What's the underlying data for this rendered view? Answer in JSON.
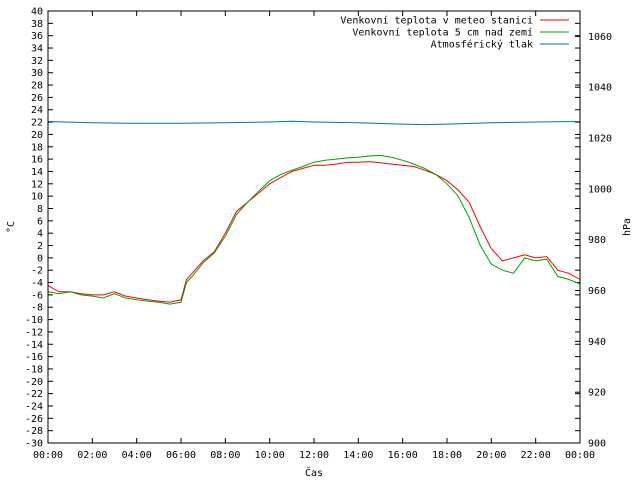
{
  "chart_data": {
    "type": "line",
    "xlabel": "Čas",
    "ylabel": "°C",
    "y2label": "hPa",
    "xlim": [
      0,
      24
    ],
    "ylim": [
      -30,
      40
    ],
    "y2lim": [
      900,
      1070
    ],
    "legend_position": "top-right",
    "x_tick_labels": [
      "00:00",
      "02:00",
      "04:00",
      "06:00",
      "08:00",
      "10:00",
      "12:00",
      "14:00",
      "16:00",
      "18:00",
      "20:00",
      "22:00",
      "00:00"
    ],
    "y_tick_labels": [
      "-30",
      "-28",
      "-26",
      "-24",
      "-22",
      "-20",
      "-18",
      "-16",
      "-14",
      "-12",
      "-10",
      "-8",
      "-6",
      "-4",
      "-2",
      "0",
      "2",
      "4",
      "6",
      "8",
      "10",
      "12",
      "14",
      "16",
      "18",
      "20",
      "22",
      "24",
      "26",
      "28",
      "30",
      "32",
      "34",
      "36",
      "38",
      "40"
    ],
    "y2_tick_labels": [
      "900",
      "920",
      "940",
      "960",
      "980",
      "1000",
      "1020",
      "1040",
      "1060"
    ],
    "series": [
      {
        "name": "Venkovní teplota v meteo stanici",
        "color": "#ff0000",
        "axis": "y",
        "x": [
          0,
          0.5,
          1,
          1.5,
          2,
          2.5,
          3,
          3.5,
          4,
          4.5,
          5,
          5.5,
          6,
          6.25,
          6.5,
          7,
          7.5,
          8,
          8.5,
          9,
          9.5,
          10,
          10.5,
          11,
          11.5,
          12,
          12.5,
          13,
          13.5,
          14,
          14.5,
          15,
          15.5,
          16,
          16.5,
          17,
          17.5,
          18,
          18.5,
          19,
          19.5,
          20,
          20.5,
          21,
          21.5,
          22,
          22.5,
          23,
          23.5,
          24
        ],
        "values": [
          -4.5,
          -5.5,
          -5.5,
          -5.8,
          -6,
          -6,
          -5.5,
          -6.2,
          -6.5,
          -6.8,
          -7,
          -7.2,
          -6.8,
          -3.5,
          -2.5,
          -0.5,
          1,
          4,
          7.5,
          9,
          10.5,
          12,
          13,
          14,
          14.5,
          15,
          15,
          15.2,
          15.5,
          15.5,
          15.6,
          15.4,
          15.2,
          15,
          14.8,
          14.2,
          13.5,
          12.5,
          11,
          9,
          5,
          1.5,
          -0.5,
          0,
          0.5,
          0,
          0.2,
          -2,
          -2.5,
          -3.5
        ]
      },
      {
        "name": "Venkovní teplota 5 cm nad zemí",
        "color": "#00a000",
        "axis": "y",
        "x": [
          0,
          0.5,
          1,
          1.5,
          2,
          2.5,
          3,
          3.5,
          4,
          4.5,
          5,
          5.5,
          6,
          6.25,
          6.5,
          7,
          7.5,
          8,
          8.5,
          9,
          9.5,
          10,
          10.5,
          11,
          11.5,
          12,
          12.5,
          13,
          13.5,
          14,
          14.5,
          15,
          15.5,
          16,
          16.5,
          17,
          17.5,
          18,
          18.5,
          19,
          19.5,
          20,
          20.5,
          21,
          21.5,
          22,
          22.5,
          23,
          23.5,
          24
        ],
        "values": [
          -5.5,
          -5.8,
          -5.5,
          -6,
          -6.2,
          -6.5,
          -5.8,
          -6.5,
          -6.8,
          -7,
          -7.2,
          -7.5,
          -7.2,
          -4,
          -3,
          -0.8,
          0.8,
          3.5,
          7,
          9,
          10.8,
          12.5,
          13.5,
          14.2,
          14.8,
          15.5,
          15.8,
          16,
          16.2,
          16.3,
          16.5,
          16.6,
          16.3,
          15.8,
          15.2,
          14.5,
          13.5,
          12,
          10,
          6.5,
          2,
          -1,
          -2,
          -2.5,
          0,
          -0.5,
          -0.2,
          -3,
          -3.5,
          -4.2
        ]
      },
      {
        "name": "Atmosférický tlak",
        "color": "#0070c0",
        "axis": "y2",
        "x": [
          0,
          2,
          4,
          6,
          8,
          10,
          11,
          12,
          14,
          16,
          17,
          18,
          20,
          22,
          24
        ],
        "values": [
          1026.5,
          1026.0,
          1025.8,
          1025.8,
          1026.0,
          1026.3,
          1026.6,
          1026.3,
          1026.0,
          1025.5,
          1025.3,
          1025.5,
          1026.0,
          1026.3,
          1026.5
        ]
      }
    ]
  }
}
